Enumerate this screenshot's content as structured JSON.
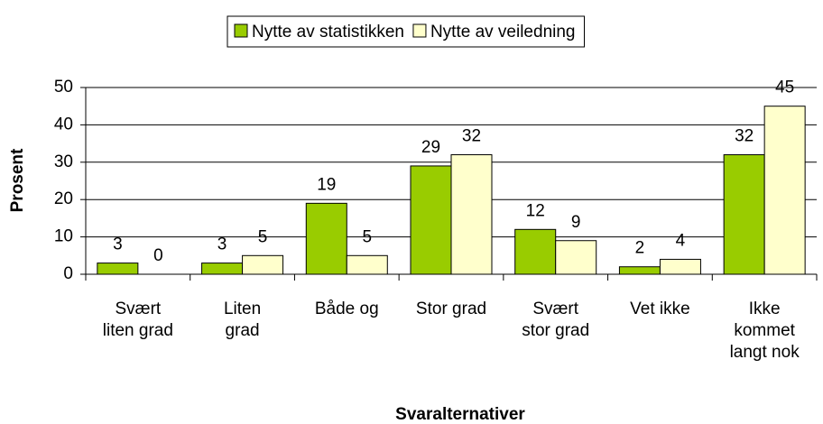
{
  "chart_data": {
    "type": "bar",
    "categories": [
      "Svært\nliten grad",
      "Liten\ngrad",
      "Både og",
      "Stor grad",
      "Svært\nstor grad",
      "Vet ikke",
      "Ikke\nkommet\nlangt nok"
    ],
    "series": [
      {
        "name": "Nytte av statistikken",
        "color": "#99cc00",
        "values": [
          3,
          3,
          19,
          29,
          12,
          2,
          32
        ]
      },
      {
        "name": "Nytte av veiledning",
        "color": "#ffffcc",
        "values": [
          0,
          5,
          5,
          32,
          9,
          4,
          45
        ]
      }
    ],
    "xlabel": "Svaralternativer",
    "ylabel": "Prosent",
    "ylim": [
      0,
      50
    ],
    "yticks": [
      0,
      10,
      20,
      30,
      40,
      50
    ],
    "grid": true,
    "legend": "top"
  }
}
